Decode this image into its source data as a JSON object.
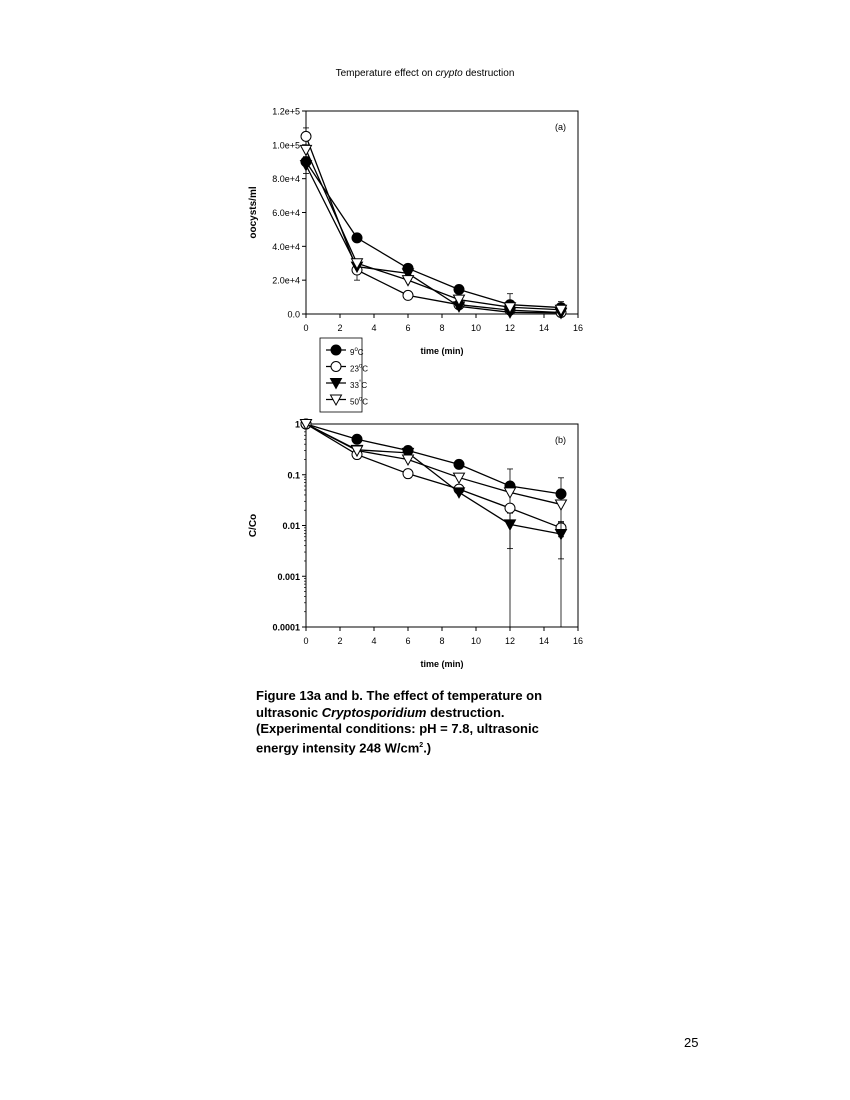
{
  "page": {
    "title_before": "Temperature effect on ",
    "title_italic": "crypto",
    "title_after": " destruction",
    "page_number": "25"
  },
  "caption": {
    "line1": "Figure 13a and b. The effect of temperature on",
    "line2_before": "ultrasonic ",
    "line2_italic": "Cryptosporidium",
    "line2_after": " destruction.",
    "line3": "(Experimental conditions:   pH = 7.8, ultrasonic",
    "line4_before": "energy intensity 248 W/cm",
    "line4_sup": "2",
    "line4_after": ".)"
  },
  "legend": {
    "entries": [
      {
        "base": "9",
        "sup": "o",
        "unit": "C",
        "marker": "filled-circle"
      },
      {
        "base": "23",
        "sup": "o",
        "unit": "C",
        "marker": "open-circle"
      },
      {
        "base": "33",
        "sup": "°",
        "unit": "C",
        "marker": "filled-triangle-down"
      },
      {
        "base": "50",
        "sup": "o",
        "unit": "C",
        "marker": "open-triangle-down"
      }
    ]
  },
  "chart_data": [
    {
      "type": "line",
      "panel_label": "(a)",
      "xlabel": "time (min)",
      "ylabel": "oocysts/ml",
      "xlim": [
        0,
        16
      ],
      "ylim": [
        0,
        120000
      ],
      "x_ticks": [
        0,
        2,
        4,
        6,
        8,
        10,
        12,
        14,
        16
      ],
      "x_tick_labels": [
        "0",
        "2",
        "4",
        "6",
        "8",
        "10",
        "12",
        "14",
        "16"
      ],
      "y_ticks": [
        0,
        20000,
        40000,
        60000,
        80000,
        100000,
        120000
      ],
      "y_tick_labels": [
        "0.0",
        "2.0e+4",
        "4.0e+4",
        "6.0e+4",
        "8.0e+4",
        "1.0e+5",
        "1.2e+5"
      ],
      "grid": false,
      "x": [
        0,
        3,
        6,
        9,
        12,
        15
      ],
      "series": [
        {
          "marker": "filled-circle",
          "values": [
            90000,
            45000,
            27000,
            14500,
            5500,
            3800
          ],
          "err": [
            [
              0,
              2000,
              1500,
              1500,
              6500,
              3500
            ]
          ]
        },
        {
          "marker": "open-circle",
          "values": [
            105000,
            26000,
            11000,
            5500,
            2300,
            900
          ],
          "err": [
            [
              5000,
              6000,
              0,
              0,
              1500,
              500
            ]
          ]
        },
        {
          "marker": "filled-triangle-down",
          "values": [
            88000,
            28000,
            24000,
            4500,
            1000,
            650
          ],
          "err": [
            [
              5000,
              0,
              3000,
              1000,
              1000,
              0
            ]
          ]
        },
        {
          "marker": "open-triangle-down",
          "values": [
            97000,
            30000,
            20000,
            8500,
            4000,
            2500
          ],
          "err": [
            [
              0,
              0,
              0,
              1000,
              0,
              0
            ]
          ]
        }
      ]
    },
    {
      "type": "line",
      "panel_label": "(b)",
      "xlabel": "time (min)",
      "ylabel": "C/Co",
      "xlim": [
        0,
        16
      ],
      "ylim": [
        0.0001,
        1
      ],
      "log_y": true,
      "x_ticks": [
        0,
        2,
        4,
        6,
        8,
        10,
        12,
        14,
        16
      ],
      "x_tick_labels": [
        "0",
        "2",
        "4",
        "6",
        "8",
        "10",
        "12",
        "14",
        "16"
      ],
      "y_ticks": [
        0.0001,
        0.001,
        0.01,
        0.1,
        1
      ],
      "y_tick_labels": [
        "0.0001",
        "0.001",
        "0.01",
        "0.1",
        "1"
      ],
      "grid": false,
      "x": [
        0,
        3,
        6,
        9,
        12,
        15
      ],
      "series": [
        {
          "marker": "filled-circle",
          "values": [
            1,
            0.5,
            0.3,
            0.16,
            0.06,
            0.042
          ],
          "err": [
            [
              0,
              0,
              0,
              0,
              0.07,
              0.045
            ]
          ]
        },
        {
          "marker": "open-circle",
          "values": [
            1,
            0.25,
            0.105,
            0.052,
            0.022,
            0.009
          ],
          "err": [
            [
              0,
              0,
              0,
              0,
              0,
              0.003
            ]
          ]
        },
        {
          "marker": "filled-triangle-down",
          "values": [
            1,
            0.31,
            0.27,
            0.045,
            0.0105,
            0.0068
          ],
          "err": [
            [
              0,
              0,
              0,
              0,
              0.007,
              0.0046
            ]
          ]
        },
        {
          "marker": "open-triangle-down",
          "values": [
            1,
            0.3,
            0.2,
            0.088,
            0.045,
            0.026
          ],
          "err": [
            [
              0,
              0,
              0,
              0,
              0,
              0
            ]
          ]
        }
      ]
    }
  ]
}
